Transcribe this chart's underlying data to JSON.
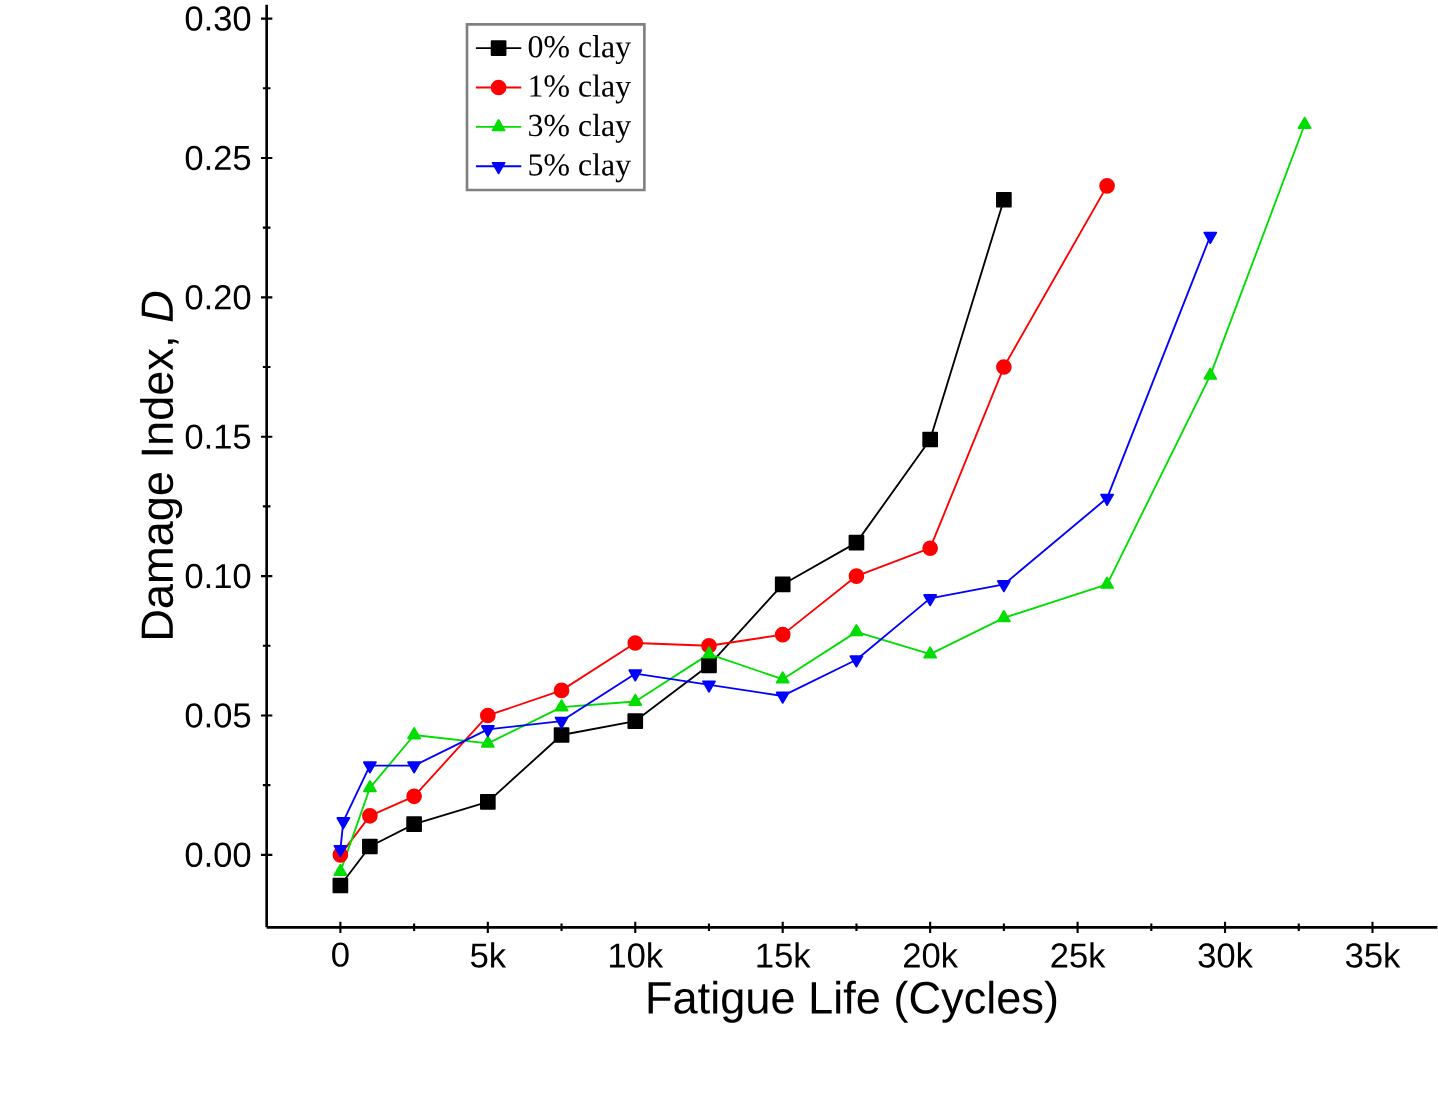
{
  "chart_data": {
    "type": "line",
    "xlabel": "Fatigue Life (Cycles)",
    "ylabel": "Damage Index, *D*",
    "xlim": [
      -2500,
      37200
    ],
    "ylim": [
      -0.026,
      0.305
    ],
    "xticks": [
      {
        "value": 0,
        "label": "0"
      },
      {
        "value": 5000,
        "label": "5k"
      },
      {
        "value": 10000,
        "label": "10k"
      },
      {
        "value": 15000,
        "label": "15k"
      },
      {
        "value": 20000,
        "label": "20k"
      },
      {
        "value": 25000,
        "label": "25k"
      },
      {
        "value": 30000,
        "label": "30k"
      },
      {
        "value": 35000,
        "label": "35k"
      }
    ],
    "yticks": [
      {
        "value": 0,
        "label": "0.00"
      },
      {
        "value": 0.05,
        "label": "0.05"
      },
      {
        "value": 0.1,
        "label": "0.10"
      },
      {
        "value": 0.15,
        "label": "0.15"
      },
      {
        "value": 0.2,
        "label": "0.20"
      },
      {
        "value": 0.25,
        "label": "0.25"
      },
      {
        "value": 0.3,
        "label": "0.30"
      }
    ],
    "legend": "top left",
    "grid": false,
    "line_style": "solid",
    "series": [
      {
        "name": "0% clay",
        "color": "#000000",
        "marker": "square",
        "x": [
          0,
          1000,
          2500,
          5000,
          7500,
          10000,
          12500,
          15000,
          17500,
          20000,
          22500
        ],
        "values": [
          -0.011,
          0.003,
          0.011,
          0.019,
          0.043,
          0.048,
          0.068,
          0.097,
          0.112,
          0.149,
          0.235
        ]
      },
      {
        "name": "1% clay",
        "color": "#ff0000",
        "marker": "circle",
        "x": [
          0,
          1000,
          2500,
          5000,
          7500,
          10000,
          12500,
          15000,
          17500,
          20000,
          22500,
          26000
        ],
        "values": [
          0.0,
          0.014,
          0.021,
          0.05,
          0.059,
          0.076,
          0.075,
          0.079,
          0.1,
          0.11,
          0.175,
          0.24
        ]
      },
      {
        "name": "3% clay",
        "color": "#00dd00",
        "marker": "triangle",
        "x": [
          0,
          1000,
          2500,
          5000,
          7500,
          10000,
          12500,
          15000,
          17500,
          20000,
          22500,
          26000,
          29500,
          32700
        ],
        "values": [
          -0.006,
          0.024,
          0.043,
          0.04,
          0.053,
          0.055,
          0.072,
          0.063,
          0.08,
          0.072,
          0.085,
          0.097,
          0.172,
          0.262
        ]
      },
      {
        "name": "5% clay",
        "color": "#0000ff",
        "marker": "triangle down",
        "x": [
          0,
          100,
          1000,
          2500,
          5000,
          7500,
          10000,
          12500,
          15000,
          17500,
          20000,
          22500,
          26000,
          29500
        ],
        "values": [
          0.002,
          0.012,
          0.032,
          0.032,
          0.045,
          0.048,
          0.065,
          0.061,
          0.057,
          0.07,
          0.092,
          0.097,
          0.128,
          0.222
        ]
      }
    ]
  }
}
